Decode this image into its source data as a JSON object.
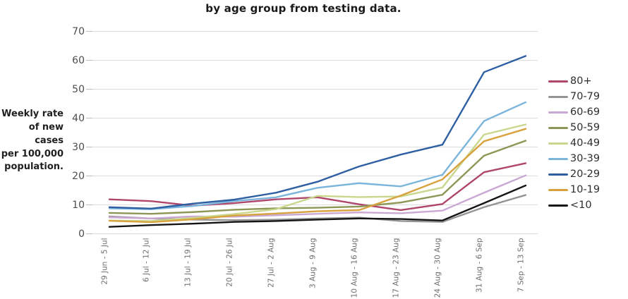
{
  "ylabel_lines": [
    "Weekly rate",
    "of new cases",
    "per 100,000",
    "population."
  ],
  "chart_data": {
    "type": "line",
    "title": "by age group from testing data.",
    "ylabel": "Weekly rate of new cases per 100,000 population.",
    "xlabel": "",
    "ylim": [
      0,
      70
    ],
    "yticks": [
      0,
      10,
      20,
      30,
      40,
      50,
      60,
      70
    ],
    "grid": true,
    "legend_position": "right",
    "grid_color": "#dcdcdc",
    "tick_color": "#bdbdbd",
    "categories": [
      "29 Jun - 5 Jul",
      "6 Jul - 12 Jul",
      "13 Jul - 19 Jul",
      "20 Jul - 26 Jul",
      "27 Jul - 2 Aug",
      "3 Aug - 9 Aug",
      "10 Aug - 16 Aug",
      "17 Aug - 23 Aug",
      "24 Aug - 30 Aug",
      "31 Aug - 6 Sep",
      "7 Sep - 13 Sep"
    ],
    "series": [
      {
        "name": "80+",
        "color": "#b0466b",
        "values": [
          11.9,
          11.3,
          9.7,
          10.6,
          11.9,
          12.6,
          10.2,
          8.2,
          10.3,
          21.3,
          24.4
        ]
      },
      {
        "name": "70-79",
        "color": "#949494",
        "values": [
          6.0,
          5.3,
          4.9,
          4.7,
          4.9,
          5.3,
          5.6,
          4.4,
          4.1,
          9.2,
          13.4
        ]
      },
      {
        "name": "60-69",
        "color": "#c9a8d4",
        "values": [
          5.7,
          5.3,
          6.0,
          5.9,
          6.4,
          6.9,
          7.4,
          7.1,
          8.0,
          14.2,
          20.2
        ]
      },
      {
        "name": "50-59",
        "color": "#8e9656",
        "values": [
          7.2,
          6.9,
          7.5,
          8.3,
          8.8,
          9.0,
          9.4,
          10.8,
          13.5,
          27.0,
          32.2
        ]
      },
      {
        "name": "40-49",
        "color": "#c8d78c",
        "values": [
          4.6,
          4.4,
          5.5,
          6.8,
          8.5,
          13.1,
          12.7,
          12.9,
          16.0,
          34.3,
          37.8
        ]
      },
      {
        "name": "30-39",
        "color": "#7cb5dc",
        "values": [
          8.8,
          8.5,
          9.6,
          11.3,
          12.6,
          15.9,
          17.5,
          16.4,
          20.4,
          39.0,
          45.5
        ]
      },
      {
        "name": "20-29",
        "color": "#2e5fa3",
        "values": [
          9.2,
          8.7,
          10.4,
          11.8,
          14.2,
          18.0,
          23.3,
          27.4,
          30.8,
          55.9,
          61.5
        ]
      },
      {
        "name": "10-19",
        "color": "#d8a23f",
        "values": [
          4.5,
          4.0,
          5.0,
          6.3,
          7.0,
          7.8,
          8.2,
          13.2,
          18.8,
          32.0,
          36.3
        ]
      },
      {
        "name": "<10",
        "color": "#151515",
        "values": [
          2.4,
          3.0,
          3.5,
          4.1,
          4.4,
          4.9,
          5.3,
          5.1,
          4.6,
          10.6,
          16.7
        ]
      }
    ]
  }
}
